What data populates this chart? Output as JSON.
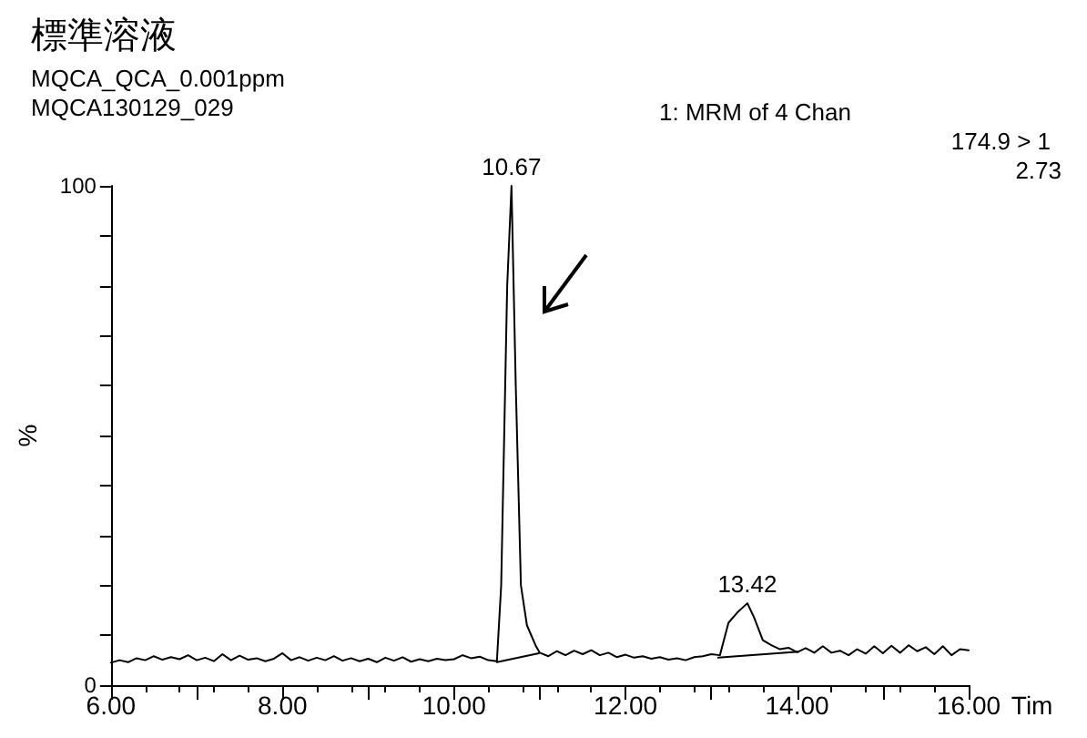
{
  "chart_data": {
    "type": "line",
    "title": "標準溶液",
    "subtitle": "MQCA_QCA_0.001ppm\nMQCA130129_029",
    "xlabel": "Tim",
    "ylabel": "%",
    "annotations": [
      "1: MRM of 4 Chan",
      "174.9 > 1",
      "2.73",
      {
        "text": "10.67",
        "x": 10.67,
        "y": 100
      },
      {
        "text": "13.42",
        "x": 13.42,
        "y": 16.4
      }
    ],
    "xlim": [
      6,
      16
    ],
    "xticks": [
      {
        "value": 6,
        "label": "6.00"
      },
      {
        "value": 7,
        "label": null
      },
      {
        "value": 8,
        "label": "8.00"
      },
      {
        "value": 9,
        "label": null
      },
      {
        "value": 10,
        "label": "10.00"
      },
      {
        "value": 11,
        "label": null
      },
      {
        "value": 12,
        "label": "12.00"
      },
      {
        "value": 13,
        "label": null
      },
      {
        "value": 14,
        "label": "14.00"
      },
      {
        "value": 15,
        "label": null
      },
      {
        "value": 16,
        "label": "16.00"
      }
    ],
    "ylim": [
      0,
      100
    ],
    "yticks": [
      0,
      {
        "value": 10,
        "label": null
      },
      {
        "value": 20,
        "label": null
      },
      {
        "value": 30,
        "label": null
      },
      {
        "value": 40,
        "label": null
      },
      {
        "value": 50,
        "label": null
      },
      {
        "value": 60,
        "label": null
      },
      {
        "value": 70,
        "label": null
      },
      {
        "value": 80,
        "label": null
      },
      {
        "value": 90,
        "label": null
      },
      100
    ],
    "grid": false,
    "marker": "none",
    "line_style": "solid",
    "series": [
      {
        "color": "#000000",
        "x": [
          6.0,
          6.1,
          6.2,
          6.3,
          6.4,
          6.5,
          6.6,
          6.7,
          6.8,
          6.9,
          7.0,
          7.1,
          7.2,
          7.3,
          7.4,
          7.5,
          7.6,
          7.7,
          7.8,
          7.9,
          8.0,
          8.1,
          8.2,
          8.3,
          8.4,
          8.5,
          8.6,
          8.7,
          8.8,
          8.9,
          9.0,
          9.1,
          9.2,
          9.3,
          9.4,
          9.5,
          9.6,
          9.7,
          9.8,
          9.9,
          10.0,
          10.1,
          10.2,
          10.3,
          10.4,
          10.5,
          10.55,
          10.62,
          10.67,
          10.72,
          10.78,
          10.85,
          10.95,
          11.0,
          11.1,
          11.2,
          11.3,
          11.4,
          11.5,
          11.6,
          11.7,
          11.8,
          11.9,
          12.0,
          12.1,
          12.2,
          12.3,
          12.4,
          12.5,
          12.6,
          12.7,
          12.8,
          12.9,
          13.0,
          13.1,
          13.2,
          13.3,
          13.42,
          13.5,
          13.6,
          13.7,
          13.8,
          13.9,
          14.0,
          14.1,
          14.2,
          14.3,
          14.4,
          14.5,
          14.6,
          14.7,
          14.8,
          14.9,
          15.0,
          15.1,
          15.2,
          15.3,
          15.4,
          15.5,
          15.6,
          15.7,
          15.8,
          15.9,
          16.0
        ],
        "values": [
          4.5,
          5.0,
          4.6,
          5.4,
          5.0,
          5.8,
          5.1,
          5.6,
          5.2,
          6.0,
          5.0,
          5.5,
          4.8,
          6.2,
          5.0,
          5.9,
          5.1,
          5.4,
          4.8,
          5.3,
          6.4,
          5.0,
          5.6,
          4.9,
          5.5,
          5.0,
          5.8,
          4.9,
          5.4,
          4.8,
          5.3,
          4.6,
          5.5,
          4.9,
          5.6,
          4.7,
          5.2,
          4.8,
          5.3,
          5.0,
          5.2,
          6.0,
          5.4,
          5.7,
          5.0,
          4.8,
          20,
          80,
          100,
          60,
          20,
          12,
          8,
          6.5,
          5.8,
          6.8,
          6.0,
          6.9,
          6.2,
          7.0,
          6.0,
          6.5,
          5.6,
          6.1,
          5.5,
          5.8,
          5.3,
          5.6,
          5.1,
          5.4,
          5.0,
          5.6,
          5.8,
          6.2,
          6.0,
          12.5,
          14.5,
          16.4,
          13.5,
          9.0,
          8.0,
          7.2,
          7.5,
          6.6,
          7.4,
          6.5,
          7.8,
          6.5,
          6.9,
          6.0,
          7.2,
          6.3,
          7.8,
          6.4,
          7.9,
          6.5,
          8.0,
          6.8,
          7.6,
          6.2,
          7.8,
          6.0,
          7.2,
          7.0
        ]
      },
      {
        "color": "#000000",
        "x": [
          10.5,
          10.99
        ],
        "values": [
          4.6,
          6.4
        ]
      },
      {
        "color": "#000000",
        "x": [
          13.08,
          14.02
        ],
        "values": [
          5.5,
          6.7
        ]
      }
    ]
  }
}
